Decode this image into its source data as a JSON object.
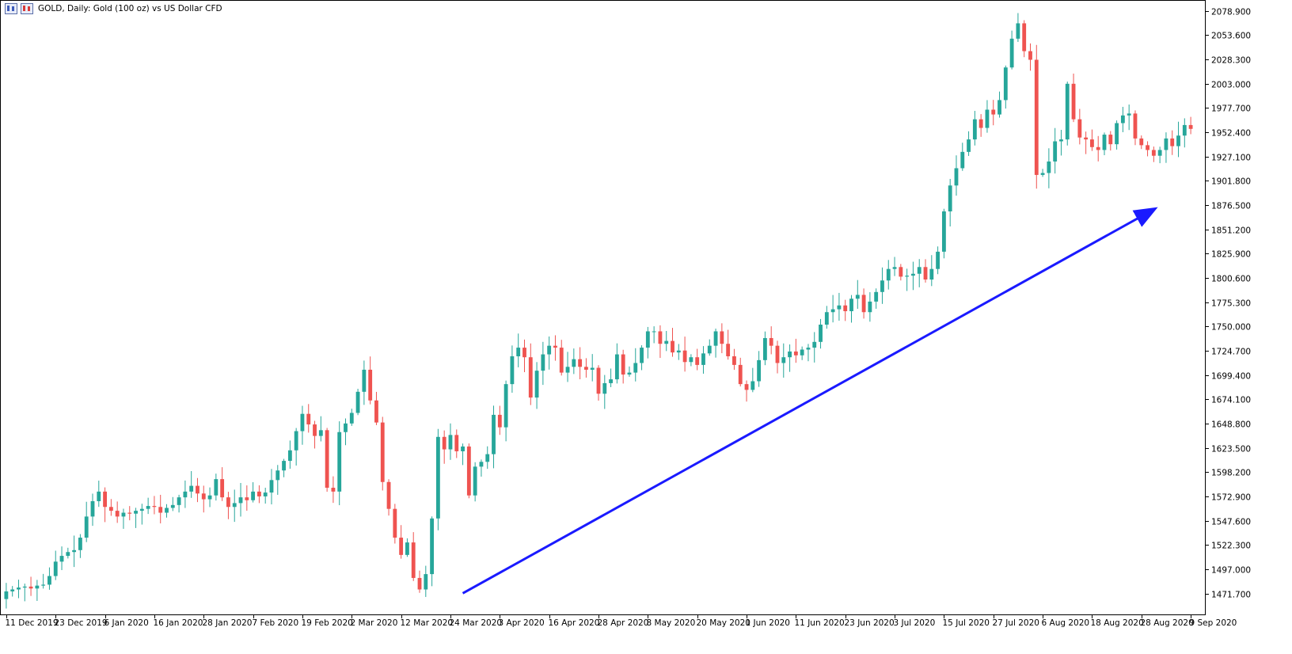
{
  "header": {
    "title": "GOLD, Daily:  Gold (100 oz) vs US Dollar CFD"
  },
  "colors": {
    "bull": "#26a69a",
    "bear": "#ef5350",
    "wick_bull": "#26a69a",
    "wick_bear": "#ef5350",
    "arrow": "#1a1aff",
    "axis": "#000000",
    "background": "#ffffff"
  },
  "chart_data": {
    "type": "candlestick",
    "symbol": "GOLD",
    "timeframe": "Daily",
    "description": "Gold (100 oz) vs US Dollar CFD",
    "y_ticks": [
      "2078.900",
      "2053.600",
      "2028.300",
      "2003.000",
      "1977.700",
      "1952.400",
      "1927.100",
      "1901.800",
      "1876.500",
      "1851.200",
      "1825.900",
      "1800.600",
      "1775.300",
      "1750.000",
      "1724.700",
      "1699.400",
      "1674.100",
      "1648.800",
      "1623.500",
      "1598.200",
      "1572.900",
      "1547.600",
      "1522.300",
      "1497.000",
      "1471.700"
    ],
    "ylim": [
      1450,
      2087
    ],
    "x_labels": [
      "11 Dec 2019",
      "23 Dec 2019",
      "6 Jan 2020",
      "16 Jan 2020",
      "28 Jan 2020",
      "7 Feb 2020",
      "19 Feb 2020",
      "2 Mar 2020",
      "12 Mar 2020",
      "24 Mar 2020",
      "3 Apr 2020",
      "16 Apr 2020",
      "28 Apr 2020",
      "8 May 2020",
      "20 May 2020",
      "1 Jun 2020",
      "11 Jun 2020",
      "23 Jun 2020",
      "3 Jul 2020",
      "15 Jul 2020",
      "27 Jul 2020",
      "6 Aug 2020",
      "18 Aug 2020",
      "28 Aug 2020",
      "9 Sep 2020"
    ],
    "x_label_index": [
      0,
      8,
      16,
      24,
      32,
      40,
      48,
      56,
      64,
      72,
      80,
      88,
      96,
      104,
      112,
      120,
      128,
      136,
      144,
      152,
      160,
      168,
      176,
      184,
      192
    ],
    "ohlc_open": [
      1466,
      1474,
      1476,
      1478,
      1479,
      1477,
      1480,
      1481,
      1490,
      1505,
      1511,
      1515,
      1517,
      1530,
      1552,
      1568,
      1578,
      1562,
      1558,
      1552,
      1556,
      1555,
      1558,
      1560,
      1563,
      1562,
      1556,
      1561,
      1564,
      1572,
      1578,
      1584,
      1576,
      1570,
      1574,
      1591,
      1572,
      1562,
      1566,
      1572,
      1569,
      1578,
      1573,
      1577,
      1590,
      1600,
      1610,
      1621,
      1641,
      1659,
      1648,
      1636,
      1642,
      1582,
      1578,
      1640,
      1649,
      1660,
      1682,
      1705,
      1673,
      1650,
      1588,
      1560,
      1530,
      1512,
      1525,
      1488,
      1476,
      1492,
      1550,
      1635,
      1622,
      1637,
      1620,
      1625,
      1574,
      1604,
      1609,
      1617,
      1658,
      1645,
      1690,
      1719,
      1728,
      1718,
      1676,
      1704,
      1721,
      1730,
      1728,
      1702,
      1708,
      1716,
      1708,
      1705,
      1707,
      1680,
      1691,
      1695,
      1721,
      1700,
      1702,
      1712,
      1728,
      1745,
      1745,
      1732,
      1735,
      1723,
      1725,
      1713,
      1718,
      1710,
      1722,
      1730,
      1745,
      1732,
      1719,
      1710,
      1690,
      1684,
      1693,
      1715,
      1738,
      1730,
      1712,
      1718,
      1724,
      1720,
      1726,
      1728,
      1734,
      1752,
      1765,
      1768,
      1772,
      1766,
      1779,
      1783,
      1765,
      1776,
      1786,
      1798,
      1810,
      1812,
      1802,
      1803,
      1805,
      1812,
      1799,
      1810,
      1828,
      1870,
      1897,
      1915,
      1932,
      1945,
      1966,
      1957,
      1976,
      1971,
      1986,
      2020,
      2050,
      2066,
      2037,
      2028,
      1908,
      1910,
      1922,
      1943,
      1945,
      2003,
      1966,
      1947,
      1945,
      1937,
      1934,
      1950,
      1940,
      1962,
      1970,
      1972,
      1946,
      1939,
      1934,
      1928,
      1934,
      1946,
      1938,
      1949,
      1960
    ],
    "ohlc_close": [
      1474,
      1476,
      1478,
      1479,
      1477,
      1480,
      1481,
      1490,
      1505,
      1511,
      1515,
      1517,
      1530,
      1552,
      1568,
      1578,
      1562,
      1558,
      1552,
      1556,
      1555,
      1558,
      1560,
      1563,
      1562,
      1556,
      1561,
      1564,
      1572,
      1578,
      1584,
      1576,
      1570,
      1574,
      1591,
      1572,
      1562,
      1566,
      1572,
      1569,
      1578,
      1573,
      1577,
      1590,
      1600,
      1610,
      1621,
      1641,
      1659,
      1648,
      1636,
      1642,
      1582,
      1578,
      1640,
      1649,
      1660,
      1682,
      1705,
      1673,
      1650,
      1588,
      1560,
      1530,
      1512,
      1525,
      1488,
      1476,
      1492,
      1550,
      1635,
      1622,
      1637,
      1620,
      1625,
      1574,
      1604,
      1609,
      1617,
      1658,
      1645,
      1690,
      1719,
      1728,
      1718,
      1676,
      1704,
      1721,
      1730,
      1728,
      1702,
      1708,
      1716,
      1708,
      1705,
      1707,
      1680,
      1691,
      1695,
      1721,
      1700,
      1702,
      1712,
      1728,
      1745,
      1745,
      1732,
      1735,
      1723,
      1725,
      1713,
      1718,
      1710,
      1722,
      1730,
      1745,
      1732,
      1719,
      1710,
      1690,
      1684,
      1693,
      1715,
      1738,
      1730,
      1712,
      1718,
      1724,
      1720,
      1726,
      1728,
      1734,
      1752,
      1765,
      1768,
      1772,
      1766,
      1779,
      1783,
      1765,
      1776,
      1786,
      1798,
      1810,
      1812,
      1802,
      1803,
      1805,
      1812,
      1799,
      1810,
      1828,
      1870,
      1897,
      1915,
      1932,
      1945,
      1966,
      1957,
      1976,
      1971,
      1986,
      2020,
      2050,
      2066,
      2037,
      2028,
      1908,
      1910,
      1922,
      1943,
      1945,
      2003,
      1966,
      1947,
      1945,
      1937,
      1934,
      1950,
      1940,
      1962,
      1970,
      1972,
      1946,
      1939,
      1934,
      1928,
      1934,
      1946,
      1938,
      1949,
      1960,
      1956
    ],
    "arrow": {
      "from": [
        74,
        1472
      ],
      "to": [
        186,
        1872
      ]
    }
  }
}
